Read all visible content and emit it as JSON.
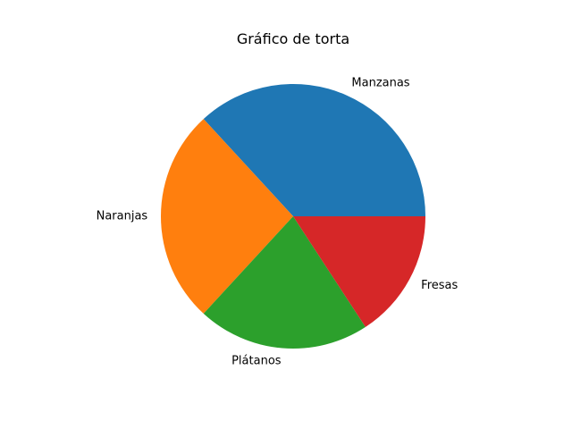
{
  "chart_data": {
    "type": "pie",
    "title": "Gráfico de torta",
    "start_angle": 0,
    "direction": "counterclockwise",
    "slices": [
      {
        "label": "Manzanas",
        "value": 35,
        "color": "#1f77b4"
      },
      {
        "label": "Naranjas",
        "value": 25,
        "color": "#ff7f0e"
      },
      {
        "label": "Plátanos",
        "value": 20,
        "color": "#2ca02c"
      },
      {
        "label": "Fresas",
        "value": 15,
        "color": "#d62728"
      }
    ]
  }
}
